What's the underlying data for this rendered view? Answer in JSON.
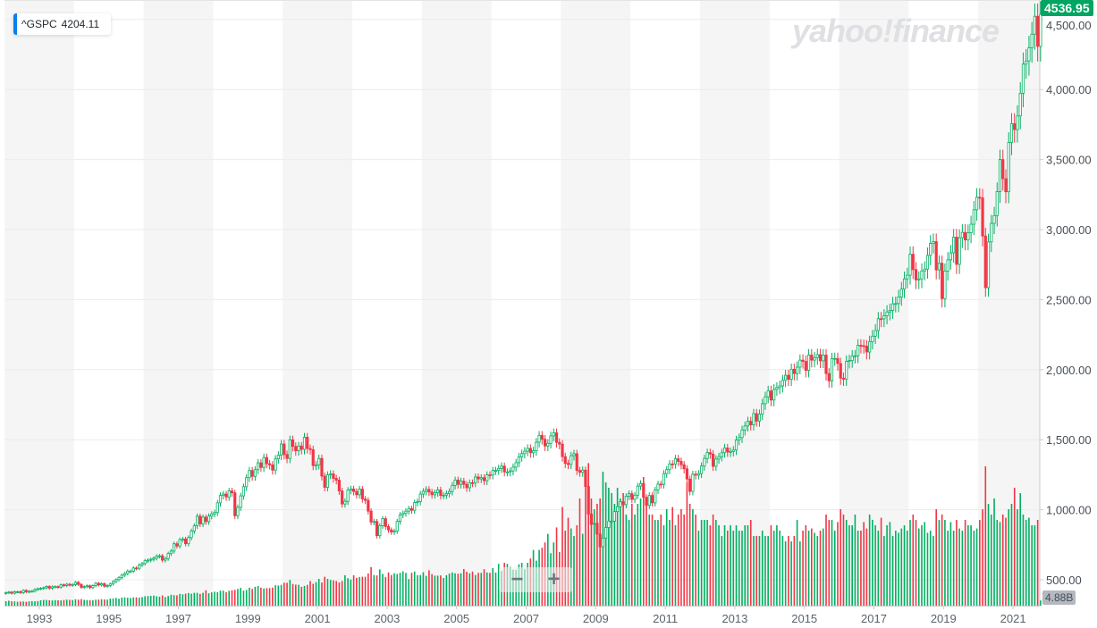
{
  "legend": {
    "symbol": "^GSPC",
    "value": "4204.11",
    "color": "#0081f2"
  },
  "watermark": "yahoo!finance",
  "zoom": {
    "out": "−",
    "in": "+"
  },
  "price_tag": "4536.95",
  "volume_tag": "4.88B",
  "colors": {
    "up": "#00b061",
    "down": "#f23645",
    "band": "#f5f5f5",
    "price_tag": "#00a562"
  },
  "chart_data": {
    "type": "candlestick",
    "interval": "monthly",
    "start": "1992-01",
    "y_ticks": [
      "500.00",
      "1,000.00",
      "1,500.00",
      "2,000.00",
      "2,500.00",
      "3,000.00",
      "3,500.00",
      "4,000.00",
      "4,500.00"
    ],
    "y_tick_values": [
      500,
      1000,
      1500,
      2000,
      2500,
      3000,
      3500,
      4000,
      4500
    ],
    "x_ticks": [
      "1993",
      "1995",
      "1997",
      "1999",
      "2001",
      "2003",
      "2005",
      "2007",
      "2009",
      "2011",
      "2013",
      "2015",
      "2017",
      "2019",
      "2021"
    ],
    "ylim": [
      310,
      4640
    ],
    "grid": true,
    "close": {
      "1992": [
        408,
        412,
        404,
        415,
        415,
        408,
        424,
        414,
        418,
        419,
        431,
        436
      ],
      "1993": [
        439,
        443,
        452,
        440,
        450,
        451,
        448,
        464,
        459,
        468,
        462,
        466
      ],
      "1994": [
        482,
        467,
        446,
        451,
        457,
        444,
        458,
        475,
        463,
        472,
        454,
        459
      ],
      "1995": [
        470,
        487,
        501,
        515,
        533,
        545,
        562,
        562,
        584,
        582,
        605,
        616
      ],
      "1996": [
        636,
        640,
        646,
        654,
        669,
        671,
        640,
        652,
        687,
        705,
        757,
        741
      ],
      "1997": [
        786,
        791,
        757,
        801,
        848,
        885,
        954,
        899,
        947,
        915,
        955,
        970
      ],
      "1998": [
        980,
        1049,
        1102,
        1112,
        1091,
        1134,
        1121,
        957,
        1017,
        1099,
        1164,
        1229
      ],
      "1999": [
        1280,
        1238,
        1286,
        1335,
        1302,
        1373,
        1329,
        1320,
        1283,
        1363,
        1389,
        1469
      ],
      "2000": [
        1394,
        1366,
        1499,
        1452,
        1421,
        1455,
        1431,
        1518,
        1437,
        1429,
        1315,
        1320
      ],
      "2001": [
        1366,
        1240,
        1160,
        1249,
        1256,
        1224,
        1211,
        1134,
        1041,
        1060,
        1139,
        1148
      ],
      "2002": [
        1130,
        1107,
        1147,
        1077,
        1067,
        990,
        912,
        916,
        815,
        886,
        936,
        880
      ],
      "2003": [
        856,
        841,
        848,
        917,
        964,
        975,
        990,
        1008,
        996,
        1051,
        1058,
        1112
      ],
      "2004": [
        1131,
        1145,
        1126,
        1107,
        1121,
        1141,
        1102,
        1104,
        1115,
        1130,
        1174,
        1212
      ],
      "2005": [
        1181,
        1204,
        1181,
        1157,
        1192,
        1191,
        1234,
        1220,
        1229,
        1207,
        1249,
        1248
      ],
      "2006": [
        1280,
        1281,
        1295,
        1311,
        1270,
        1270,
        1277,
        1304,
        1336,
        1378,
        1401,
        1418
      ],
      "2007": [
        1438,
        1407,
        1421,
        1482,
        1531,
        1503,
        1455,
        1474,
        1527,
        1549,
        1481,
        1468
      ],
      "2008": [
        1379,
        1331,
        1323,
        1386,
        1400,
        1280,
        1267,
        1283,
        1166,
        969,
        896,
        903
      ],
      "2009": [
        826,
        735,
        798,
        873,
        919,
        919,
        987,
        1021,
        1057,
        1036,
        1096,
        1115
      ],
      "2010": [
        1074,
        1104,
        1169,
        1187,
        1089,
        1031,
        1102,
        1049,
        1141,
        1183,
        1181,
        1258
      ],
      "2011": [
        1286,
        1327,
        1326,
        1364,
        1345,
        1321,
        1292,
        1219,
        1131,
        1253,
        1247,
        1258
      ],
      "2012": [
        1312,
        1366,
        1408,
        1398,
        1310,
        1362,
        1379,
        1407,
        1441,
        1412,
        1416,
        1426
      ],
      "2013": [
        1498,
        1515,
        1569,
        1598,
        1631,
        1606,
        1686,
        1633,
        1682,
        1757,
        1806,
        1848
      ],
      "2014": [
        1783,
        1859,
        1872,
        1884,
        1924,
        1960,
        1931,
        2003,
        1972,
        2018,
        2068,
        2059
      ],
      "2015": [
        1995,
        2105,
        2068,
        2086,
        2107,
        2063,
        2104,
        1972,
        1920,
        2079,
        2080,
        2044
      ],
      "2016": [
        1940,
        1932,
        2060,
        2065,
        2097,
        2099,
        2174,
        2171,
        2168,
        2126,
        2199,
        2239
      ],
      "2017": [
        2279,
        2364,
        2363,
        2384,
        2412,
        2423,
        2470,
        2472,
        2519,
        2575,
        2648,
        2674
      ],
      "2018": [
        2824,
        2714,
        2641,
        2648,
        2705,
        2718,
        2816,
        2902,
        2914,
        2712,
        2760,
        2507
      ],
      "2019": [
        2704,
        2784,
        2834,
        2946,
        2752,
        2942,
        2980,
        2926,
        2977,
        3038,
        3141,
        3231
      ],
      "2020": [
        3226,
        2954,
        2585,
        2912,
        3044,
        3100,
        3271,
        3500,
        3363,
        3270,
        3622,
        3756
      ],
      "2021": [
        3714,
        3811,
        3973,
        4181,
        4204,
        4298,
        4395,
        4523,
        4308,
        4537
      ]
    },
    "volume_billions": {
      "1992": [
        4.2,
        4.6,
        4.1,
        4.0,
        3.6,
        3.8,
        3.9,
        3.6,
        4.0,
        4.2,
        4.1,
        4.3
      ],
      "1993": [
        5.0,
        5.4,
        5.3,
        5.0,
        4.9,
        5.2,
        5.0,
        4.9,
        5.3,
        5.6,
        5.4,
        5.2
      ],
      "1994": [
        6.0,
        5.6,
        6.2,
        5.4,
        5.3,
        5.2,
        5.0,
        5.6,
        5.7,
        6.0,
        5.8,
        5.6
      ],
      "1995": [
        6.6,
        6.8,
        7.2,
        6.4,
        7.6,
        7.8,
        7.4,
        7.2,
        7.7,
        7.8,
        7.6,
        8.0
      ],
      "1996": [
        8.8,
        9.0,
        9.2,
        9.4,
        8.8,
        8.4,
        9.6,
        8.0,
        9.0,
        10.2,
        9.8,
        9.6
      ],
      "1997": [
        11.0,
        10.6,
        11.2,
        11.8,
        11.2,
        12.0,
        12.0,
        11.0,
        12.0,
        14.4,
        11.6,
        12.4
      ],
      "1998": [
        13.0,
        12.6,
        14.0,
        14.0,
        12.6,
        13.8,
        14.4,
        14.8,
        15.6,
        16.6,
        14.0,
        14.6
      ],
      "1999": [
        16.8,
        15.6,
        17.6,
        18.4,
        16.8,
        16.0,
        16.4,
        16.4,
        16.8,
        19.0,
        18.8,
        19.4
      ],
      "2000": [
        21.4,
        21.4,
        24.0,
        20.2,
        19.6,
        19.4,
        17.6,
        18.4,
        19.4,
        23.0,
        20.4,
        22.0
      ],
      "2001": [
        25.0,
        21.6,
        27.0,
        25.0,
        24.0,
        23.6,
        23.0,
        21.6,
        23.0,
        28.4,
        25.6,
        24.4
      ],
      "2002": [
        28.4,
        26.0,
        26.8,
        27.0,
        27.0,
        30.0,
        36.0,
        28.6,
        28.2,
        33.8,
        29.6,
        26.8
      ],
      "2003": [
        31.0,
        28.6,
        30.2,
        29.6,
        30.6,
        32.0,
        30.6,
        24.8,
        30.6,
        31.8,
        28.4,
        28.6
      ],
      "2004": [
        31.2,
        27.8,
        33.0,
        29.4,
        28.0,
        28.0,
        28.2,
        25.8,
        28.4,
        30.0,
        31.0,
        30.2
      ],
      "2005": [
        29.8,
        30.2,
        34.2,
        31.6,
        30.2,
        31.8,
        28.6,
        30.6,
        30.6,
        34.0,
        31.0,
        30.6
      ],
      "2006": [
        35.0,
        31.0,
        39.0,
        32.4,
        40.0,
        39.0,
        36.2,
        33.6,
        33.4,
        38.6,
        40.0,
        34.0
      ],
      "2007": [
        40,
        44,
        52,
        42,
        52,
        54,
        59,
        67,
        49,
        59,
        73,
        50
      ],
      "2008": [
        92,
        70,
        82,
        72,
        65,
        75,
        100,
        67,
        120,
        133,
        100,
        90
      ],
      "2009": [
        95,
        100,
        125,
        115,
        110,
        105,
        95,
        110,
        100,
        105,
        85,
        80
      ],
      "2010": [
        95,
        85,
        95,
        100,
        120,
        100,
        85,
        85,
        80,
        80,
        85,
        75
      ],
      "2011": [
        90,
        80,
        92,
        75,
        85,
        90,
        85,
        115,
        95,
        90,
        85,
        70
      ],
      "2012": [
        80,
        80,
        80,
        75,
        85,
        80,
        75,
        65,
        75,
        70,
        75,
        70
      ],
      "2013": [
        75,
        70,
        70,
        75,
        75,
        80,
        65,
        65,
        65,
        70,
        65,
        65
      ],
      "2014": [
        75,
        70,
        75,
        70,
        65,
        60,
        65,
        60,
        65,
        80,
        60,
        70
      ],
      "2015": [
        75,
        70,
        72,
        68,
        65,
        70,
        72,
        85,
        80,
        80,
        70,
        78
      ],
      "2016": [
        90,
        85,
        80,
        75,
        75,
        85,
        70,
        70,
        78,
        72,
        85,
        80
      ],
      "2017": [
        75,
        70,
        82,
        65,
        75,
        78,
        65,
        70,
        68,
        72,
        75,
        70
      ],
      "2018": [
        80,
        85,
        80,
        72,
        75,
        78,
        68,
        70,
        65,
        90,
        80,
        85
      ],
      "2019": [
        80,
        70,
        78,
        70,
        80,
        72,
        70,
        80,
        75,
        75,
        70,
        72
      ],
      "2020": [
        80,
        90,
        130,
        95,
        85,
        100,
        80,
        78,
        85,
        82,
        90,
        95
      ],
      "2021": [
        110,
        90,
        105,
        85,
        80,
        82,
        75,
        75,
        80,
        4.88
      ]
    }
  }
}
